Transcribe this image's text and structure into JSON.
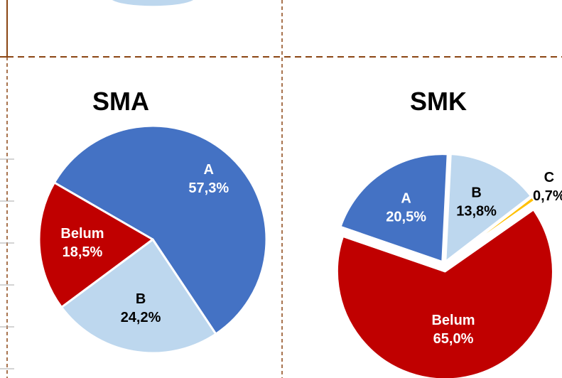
{
  "chart_data": [
    {
      "type": "pie",
      "title": "SMA",
      "categories": [
        "A",
        "B",
        "Belum"
      ],
      "values": [
        57.3,
        24.2,
        18.5
      ],
      "value_labels": [
        "57,3%",
        "24,2%",
        "18,5%"
      ],
      "colors": [
        "#4472c4",
        "#bdd7ee",
        "#c00000"
      ]
    },
    {
      "type": "pie",
      "title": "SMK",
      "categories": [
        "A",
        "B",
        "C",
        "Belum"
      ],
      "values": [
        20.5,
        13.8,
        0.7,
        65.0
      ],
      "value_labels": [
        "20,5%",
        "13,8%",
        "0,7%",
        "65,0%"
      ],
      "colors": [
        "#4472c4",
        "#bdd7ee",
        "#ffc000",
        "#c00000"
      ]
    }
  ]
}
